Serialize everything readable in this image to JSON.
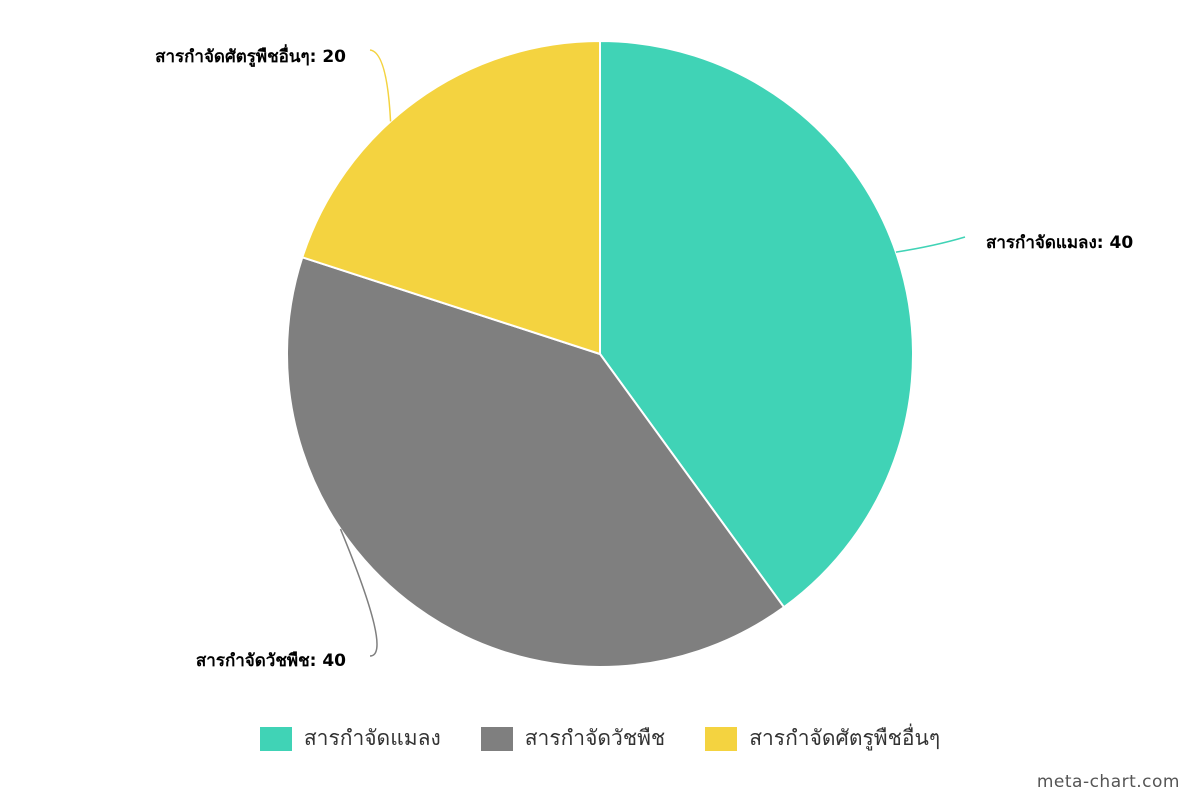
{
  "chart_data": {
    "type": "pie",
    "categories": [
      "สารกำจัดแมลง",
      "สารกำจัดวัชพืช",
      "สารกำจัดศัตรูพืชอื่นๆ"
    ],
    "values": [
      40,
      40,
      20
    ],
    "data_labels": [
      "สารกำจัดแมลง: 40",
      "สารกำจัดวัชพืช: 40",
      "สารกำจัดศัตรูพืชอื่นๆ: 20"
    ],
    "colors": [
      "#40d3b6",
      "#7f7f7f",
      "#f4d340"
    ],
    "legend_position": "bottom",
    "start_angle": "12 o'clock",
    "direction": "clockwise"
  },
  "legend": {
    "items": [
      {
        "label": "สารกำจัดแมลง",
        "color": "#40d3b6"
      },
      {
        "label": "สารกำจัดวัชพืช",
        "color": "#7f7f7f"
      },
      {
        "label": "สารกำจัดศัตรูพืชอื่นๆ",
        "color": "#f4d340"
      }
    ]
  },
  "watermark": "meta-chart.com"
}
